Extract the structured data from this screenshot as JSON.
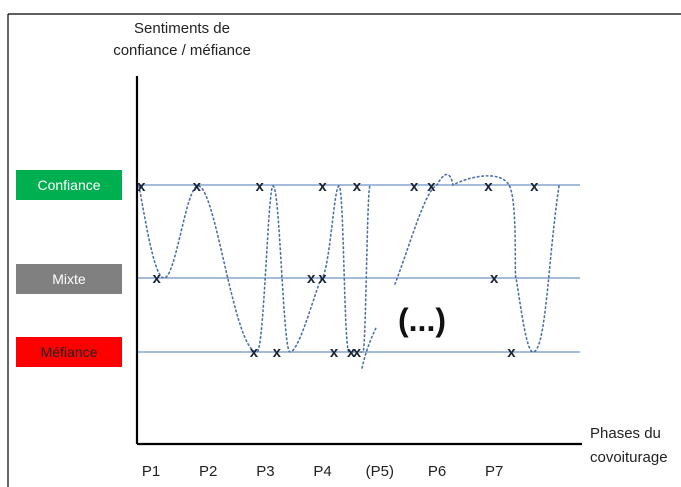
{
  "chart_data": {
    "type": "line",
    "title": "",
    "ylabel_lines": [
      "Sentiments de",
      "confiance / méfiance"
    ],
    "xlabel_lines": [
      "Phases du",
      "covoiturage"
    ],
    "x_categories": [
      "P1",
      "P2",
      "P3",
      "P4",
      "(P5)",
      "P6",
      "P7"
    ],
    "y_levels": [
      {
        "label": "Confiance",
        "value": 3,
        "color": "#00b050"
      },
      {
        "label": "Mixte",
        "value": 2,
        "color": "#808080"
      },
      {
        "label": "Méfiance",
        "value": 1,
        "color": "#ff0000"
      }
    ],
    "annotation": "(...)",
    "marker_symbol": "x",
    "line_style": "dotted",
    "line_color": "#4a6fa5",
    "points": [
      {
        "x": 0.83,
        "y": 3
      },
      {
        "x": 1.1,
        "y": 2
      },
      {
        "x": 1.8,
        "y": 3
      },
      {
        "x": 2.8,
        "y": 1
      },
      {
        "x": 2.9,
        "y": 3
      },
      {
        "x": 3.2,
        "y": 1
      },
      {
        "x": 3.8,
        "y": 2
      },
      {
        "x": 4.0,
        "y": 2
      },
      {
        "x": 4.0,
        "y": 3
      },
      {
        "x": 4.2,
        "y": 1
      },
      {
        "x": 4.5,
        "y": 1
      },
      {
        "x": 4.6,
        "y": 1
      },
      {
        "x": 4.6,
        "y": 3
      },
      {
        "x": 5.6,
        "y": 3
      },
      {
        "x": 5.9,
        "y": 3
      },
      {
        "x": 6.9,
        "y": 3
      },
      {
        "x": 7.0,
        "y": 2
      },
      {
        "x": 7.3,
        "y": 1
      },
      {
        "x": 7.7,
        "y": 3
      }
    ]
  }
}
